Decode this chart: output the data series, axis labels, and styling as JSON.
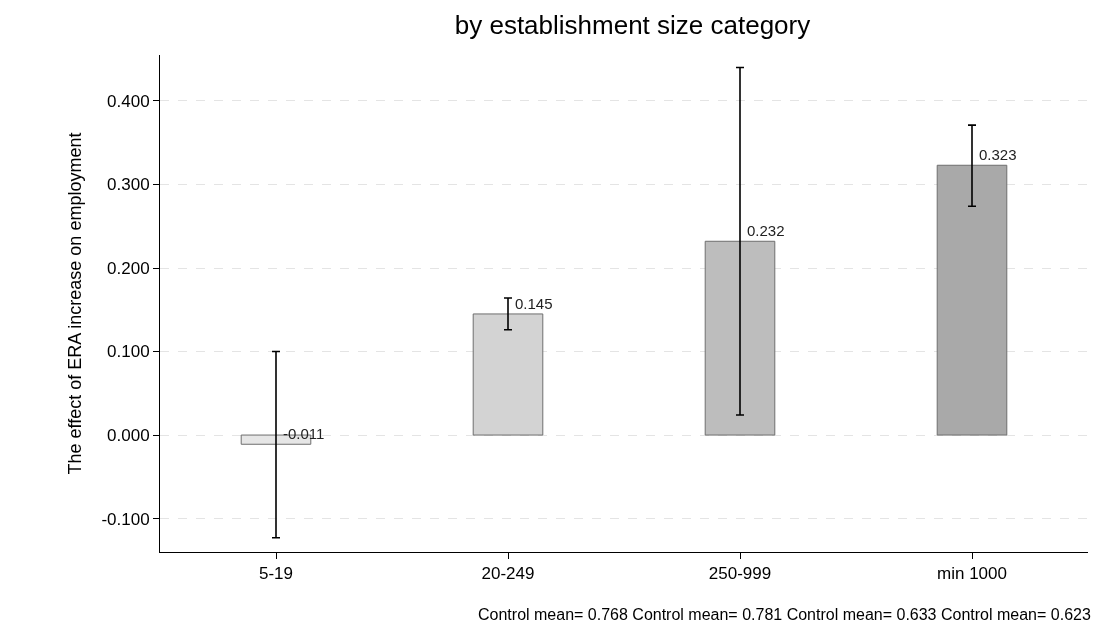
{
  "chart_data": {
    "type": "bar",
    "title": "by establishment size category",
    "ylabel": "The effect of ERA increase on employment",
    "categories": [
      "5-19",
      "20-249",
      "250-999",
      "min 1000"
    ],
    "values": [
      -0.011,
      0.145,
      0.232,
      0.323
    ],
    "colors": [
      "#e6e6e6",
      "#d3d3d3",
      "#bdbdbd",
      "#a9a9a9"
    ],
    "errors": [
      [
        -0.123,
        0.1
      ],
      [
        0.126,
        0.164
      ],
      [
        0.024,
        0.44
      ],
      [
        0.274,
        0.371
      ]
    ],
    "data_labels": true,
    "ylim": [
      -0.14,
      0.455
    ],
    "yticks": [
      {
        "value": -0.1,
        "label": "-0.100"
      },
      {
        "value": 0,
        "label": "0.000"
      },
      {
        "value": 0.1,
        "label": "0.100"
      },
      {
        "value": 0.2,
        "label": "0.200"
      },
      {
        "value": 0.3,
        "label": "0.300"
      },
      {
        "value": 0.4,
        "label": "0.400"
      }
    ],
    "grid": "y",
    "legend": false,
    "annotations": [
      "Control mean= 0.768 Control mean= 0.781 Control mean= 0.633 Control mean= 0.623"
    ]
  }
}
